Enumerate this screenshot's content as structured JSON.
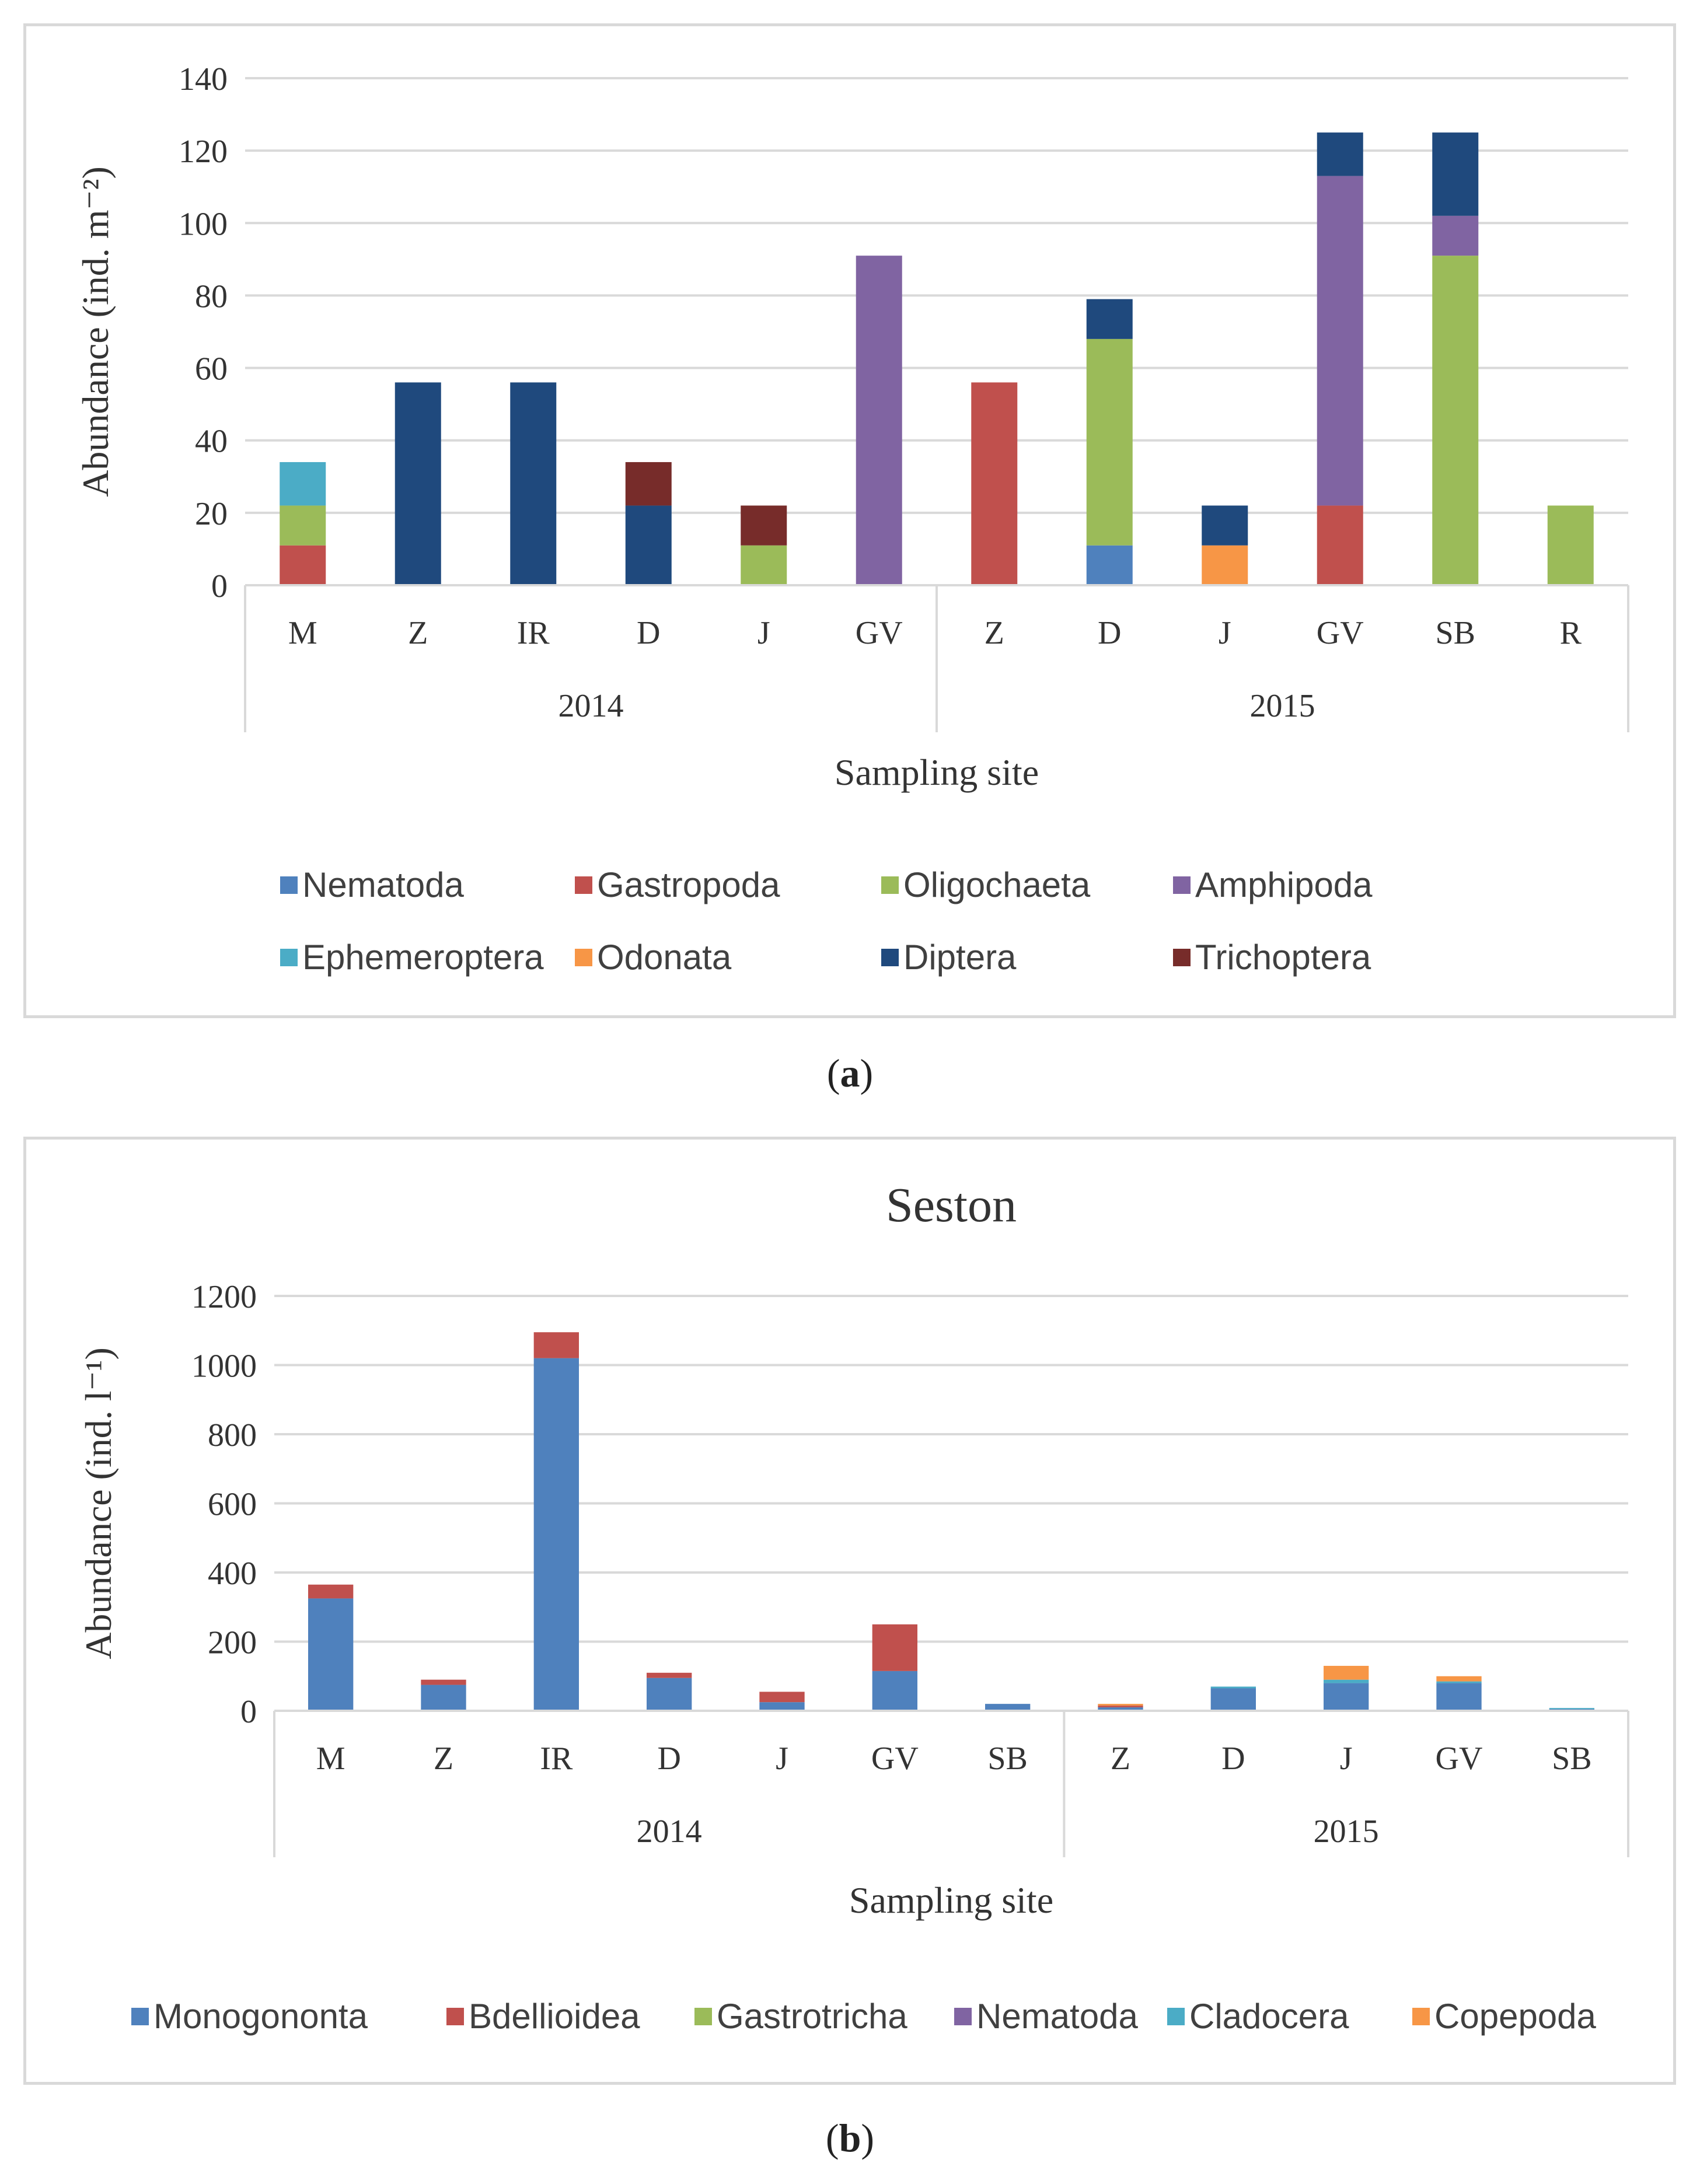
{
  "chart_data": [
    {
      "id": "a",
      "type": "bar",
      "stacked": true,
      "title": "",
      "caption": "a",
      "xlabel": "Sampling site",
      "ylabel": "Abundance (ind. m⁻²)",
      "ylim": [
        0,
        140
      ],
      "yticks": [
        0,
        20,
        40,
        60,
        80,
        100,
        120,
        140
      ],
      "groups": [
        {
          "label": "2014",
          "categories": [
            "M",
            "Z",
            "IR",
            "D",
            "J",
            "GV"
          ]
        },
        {
          "label": "2015",
          "categories": [
            "Z",
            "D",
            "J",
            "GV",
            "SB",
            "R"
          ]
        }
      ],
      "series": [
        {
          "name": "Nematoda",
          "color": "#4f81bd",
          "values": [
            0,
            0,
            0,
            0,
            0,
            0,
            0,
            11,
            0,
            0,
            0,
            0
          ]
        },
        {
          "name": "Gastropoda",
          "color": "#c0504d",
          "values": [
            11,
            0,
            0,
            0,
            0,
            0,
            56,
            0,
            0,
            22,
            0,
            0
          ]
        },
        {
          "name": "Oligochaeta",
          "color": "#9bbb59",
          "values": [
            11,
            0,
            0,
            0,
            11,
            0,
            0,
            57,
            0,
            0,
            91,
            22
          ]
        },
        {
          "name": "Amphipoda",
          "color": "#8064a2",
          "values": [
            0,
            0,
            0,
            0,
            0,
            91,
            0,
            0,
            0,
            91,
            11,
            0
          ]
        },
        {
          "name": "Ephemeroptera",
          "color": "#4bacc6",
          "values": [
            12,
            0,
            0,
            0,
            0,
            0,
            0,
            0,
            0,
            0,
            0,
            0
          ]
        },
        {
          "name": "Odonata",
          "color": "#f79646",
          "values": [
            0,
            0,
            0,
            0,
            0,
            0,
            0,
            0,
            11,
            0,
            0,
            0
          ]
        },
        {
          "name": "Diptera",
          "color": "#1f497d",
          "values": [
            0,
            56,
            56,
            22,
            0,
            0,
            0,
            11,
            11,
            12,
            23,
            0
          ]
        },
        {
          "name": "Trichoptera",
          "color": "#772c2a",
          "values": [
            0,
            0,
            0,
            12,
            11,
            0,
            0,
            0,
            0,
            0,
            0,
            0
          ]
        }
      ]
    },
    {
      "id": "b",
      "type": "bar",
      "stacked": true,
      "title": "Seston",
      "caption": "b",
      "xlabel": "Sampling site",
      "ylabel": "Abundance (ind. l⁻¹)",
      "ylim": [
        0,
        1200
      ],
      "yticks": [
        0,
        200,
        400,
        600,
        800,
        1000,
        1200
      ],
      "groups": [
        {
          "label": "2014",
          "categories": [
            "M",
            "Z",
            "IR",
            "D",
            "J",
            "GV",
            "SB"
          ]
        },
        {
          "label": "2015",
          "categories": [
            "Z",
            "D",
            "J",
            "GV",
            "SB"
          ]
        }
      ],
      "series": [
        {
          "name": "Monogononta",
          "color": "#4f81bd",
          "values": [
            325,
            75,
            1020,
            95,
            25,
            115,
            20,
            10,
            65,
            80,
            80,
            5
          ]
        },
        {
          "name": "Bdellioidea",
          "color": "#c0504d",
          "values": [
            40,
            15,
            75,
            15,
            30,
            135,
            0,
            5,
            0,
            0,
            0,
            0
          ]
        },
        {
          "name": "Gastrotricha",
          "color": "#9bbb59",
          "values": [
            0,
            0,
            0,
            0,
            0,
            0,
            0,
            0,
            0,
            0,
            0,
            0
          ]
        },
        {
          "name": "Nematoda",
          "color": "#8064a2",
          "values": [
            0,
            0,
            0,
            0,
            0,
            0,
            0,
            0,
            0,
            0,
            0,
            0
          ]
        },
        {
          "name": "Cladocera",
          "color": "#4bacc6",
          "values": [
            0,
            0,
            0,
            0,
            0,
            0,
            0,
            0,
            5,
            10,
            5,
            3
          ]
        },
        {
          "name": "Copepoda",
          "color": "#f79646",
          "values": [
            0,
            0,
            0,
            0,
            0,
            0,
            0,
            5,
            0,
            40,
            15,
            0
          ]
        }
      ]
    }
  ]
}
